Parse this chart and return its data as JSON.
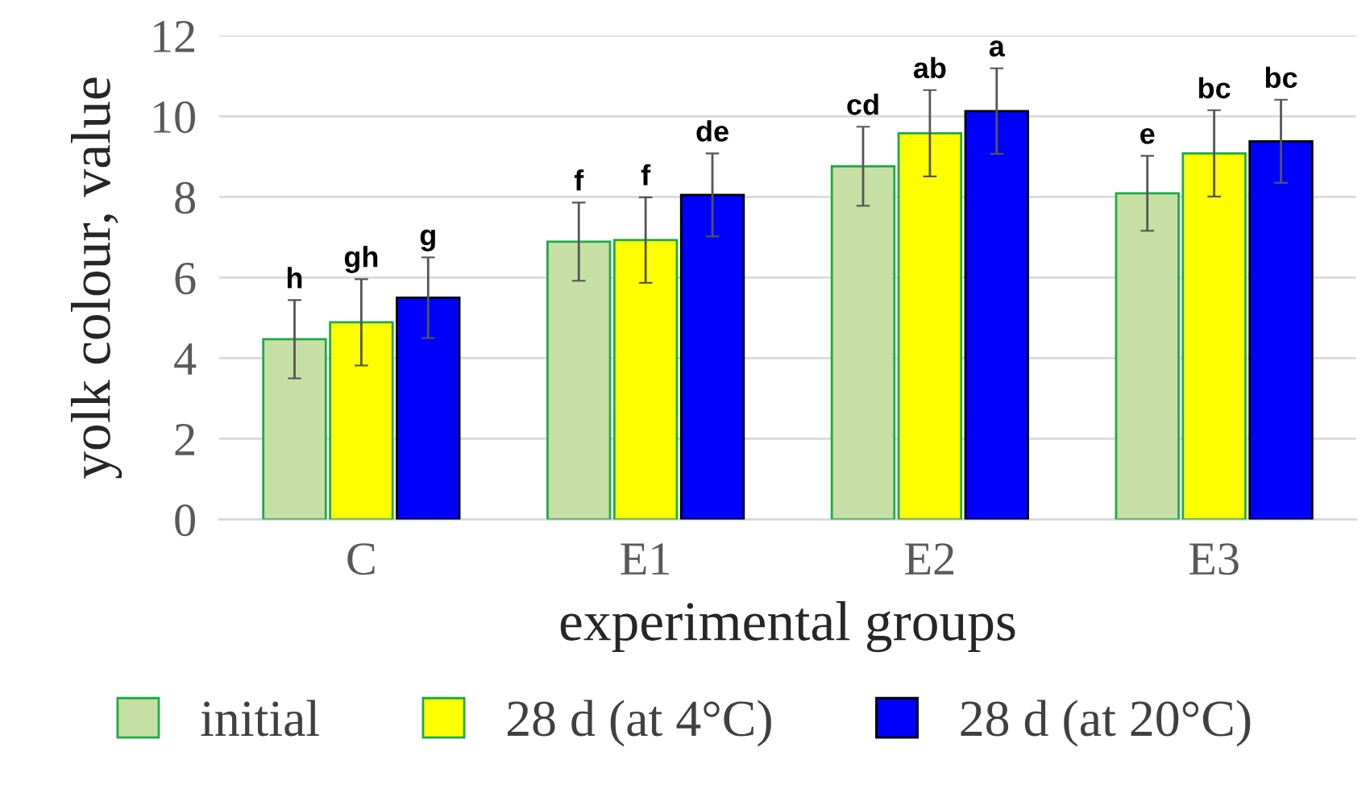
{
  "chart_data": {
    "type": "bar",
    "xlabel": "experimental groups",
    "ylabel": "yolk colour, value",
    "categories": [
      "C",
      "E1",
      "E2",
      "E3"
    ],
    "series": [
      {
        "name": "initial",
        "color": "#c6dfa4",
        "values": [
          4.47,
          6.89,
          8.76,
          8.09
        ],
        "errors": [
          0.97,
          0.97,
          0.98,
          0.93
        ],
        "value_labels": [
          "h",
          "f",
          "cd",
          "e"
        ]
      },
      {
        "name": "28 d (at 4°C)",
        "color": "#ffff00",
        "values": [
          4.89,
          6.93,
          9.58,
          9.08
        ],
        "errors": [
          1.07,
          1.06,
          1.07,
          1.07
        ],
        "value_labels": [
          "gh",
          "f",
          "ab",
          "bc"
        ]
      },
      {
        "name": "28 d (at 20°C)",
        "color": "#0000ff",
        "values": [
          5.5,
          8.05,
          10.13,
          9.38
        ],
        "errors": [
          1.0,
          1.03,
          1.06,
          1.03
        ],
        "value_labels": [
          "g",
          "de",
          "a",
          "bc"
        ]
      }
    ],
    "ylim": [
      0,
      12
    ],
    "yticks": [
      0,
      2,
      4,
      6,
      8,
      10,
      12
    ],
    "grid": "y",
    "legend": "bottom"
  }
}
